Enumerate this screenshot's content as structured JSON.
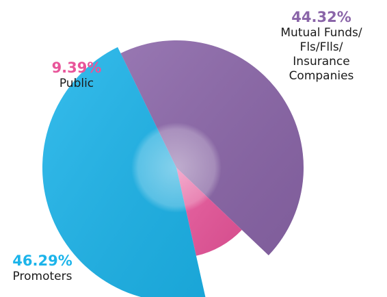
{
  "chart_data": {
    "type": "pie",
    "categories": [
      "Mutual Funds/\nFls/Flls/\nInsurance\nCompanies",
      "Public",
      "Promoters"
    ],
    "values": [
      44.32,
      9.39,
      46.29
    ],
    "value_labels": [
      "44.32%",
      "9.39%",
      "46.29%"
    ],
    "colors": [
      "#8a65a8",
      "#e8559a",
      "#1cb4ea"
    ]
  }
}
